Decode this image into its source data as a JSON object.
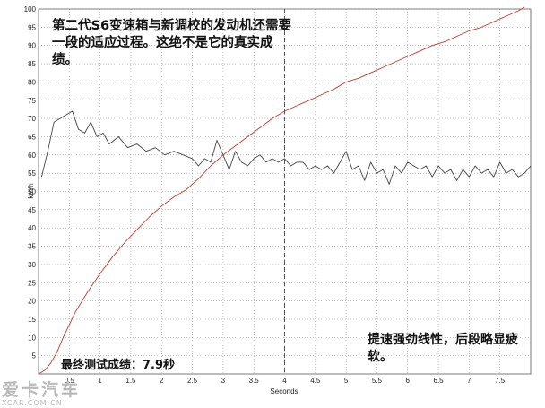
{
  "chart_data": {
    "type": "line",
    "xlabel": "Seconds",
    "ylabel": "km/h",
    "xlim": [
      0,
      8
    ],
    "ylim": [
      0,
      100
    ],
    "x_ticks": [
      "0.5",
      "1",
      "1.5",
      "2",
      "2.5",
      "3",
      "3.5",
      "4",
      "4.5",
      "5",
      "5.5",
      "6",
      "6.5",
      "7",
      "7.5"
    ],
    "y_ticks": [
      "5",
      "10",
      "15",
      "20",
      "25",
      "30",
      "35",
      "40",
      "45",
      "50",
      "55",
      "60",
      "65",
      "70",
      "75",
      "80",
      "85",
      "90",
      "95",
      "100"
    ],
    "grid": true,
    "marker_x": 4,
    "series": [
      {
        "color": "#c0392b",
        "x": [
          0,
          0.1,
          0.2,
          0.3,
          0.4,
          0.5,
          0.6,
          0.8,
          1.0,
          1.2,
          1.4,
          1.6,
          1.8,
          2.0,
          2.2,
          2.4,
          2.6,
          2.8,
          3.0,
          3.2,
          3.4,
          3.6,
          3.8,
          4.0,
          4.2,
          4.4,
          4.6,
          4.8,
          5.0,
          5.2,
          5.4,
          5.6,
          5.8,
          6.0,
          6.2,
          6.4,
          6.6,
          6.8,
          7.0,
          7.2,
          7.4,
          7.6,
          7.8,
          7.9
        ],
        "y": [
          0,
          1,
          3,
          6,
          10,
          13.5,
          17,
          22.5,
          27.5,
          32,
          36,
          39.5,
          43,
          46,
          48.5,
          50.5,
          53.5,
          57,
          60,
          62.5,
          65,
          67.5,
          70,
          72,
          73.5,
          75,
          76.5,
          78,
          80,
          81,
          82.5,
          84,
          85.5,
          87,
          88.5,
          90,
          91,
          92.5,
          94,
          95,
          96.5,
          98,
          99.5,
          100.5
        ]
      },
      {
        "color": "#444444",
        "x": [
          0.05,
          0.15,
          0.25,
          0.35,
          0.45,
          0.55,
          0.65,
          0.75,
          0.85,
          0.95,
          1.05,
          1.15,
          1.3,
          1.45,
          1.6,
          1.75,
          1.9,
          2.05,
          2.2,
          2.35,
          2.5,
          2.6,
          2.7,
          2.8,
          2.9,
          3.0,
          3.1,
          3.2,
          3.3,
          3.4,
          3.5,
          3.6,
          3.7,
          3.8,
          3.9,
          4.0,
          4.1,
          4.2,
          4.3,
          4.4,
          4.5,
          4.6,
          4.7,
          4.8,
          4.9,
          5.0,
          5.1,
          5.2,
          5.3,
          5.4,
          5.5,
          5.6,
          5.7,
          5.8,
          5.9,
          6.0,
          6.1,
          6.2,
          6.3,
          6.4,
          6.5,
          6.6,
          6.7,
          6.8,
          6.9,
          7.0,
          7.1,
          7.2,
          7.3,
          7.4,
          7.5,
          7.6,
          7.7,
          7.8,
          7.9,
          8.0
        ],
        "y": [
          54,
          61,
          69,
          70,
          71,
          72,
          67,
          66,
          69,
          65,
          66,
          63,
          65,
          62,
          63,
          61,
          62,
          60,
          61,
          60,
          59,
          57,
          59,
          58,
          64,
          60,
          56,
          61,
          58,
          57,
          59,
          60,
          58,
          59,
          58,
          59,
          57,
          58,
          58,
          56,
          57,
          56,
          57,
          55,
          58,
          61,
          56,
          57,
          53,
          58,
          55,
          56,
          52,
          57,
          55,
          58,
          57,
          56,
          57,
          54,
          57,
          55,
          56,
          53,
          56,
          54,
          57,
          55,
          56,
          54,
          58,
          55,
          56,
          54,
          55,
          57
        ]
      }
    ]
  },
  "annotations": {
    "top": "第二代S6变速箱与新调校的发动机还需要一段的适应过程。这绝不是它的真实成绩。",
    "bottom_left": "最终测试成绩：7.9秒",
    "bottom_right": "提速强劲线性，后段略显疲软。"
  },
  "watermark": {
    "brand": "爱卡汽车",
    "site": "XCAR.COM.CN"
  }
}
